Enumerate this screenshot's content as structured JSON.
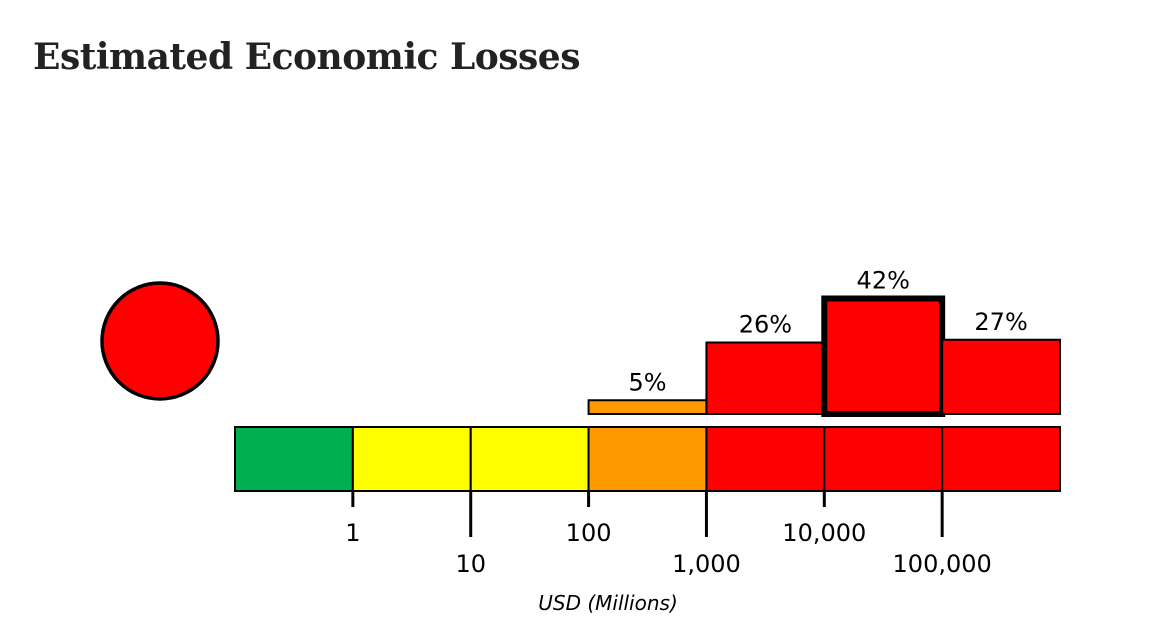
{
  "title": "Estimated Economic Losses",
  "alert_level_color": "#ff0000",
  "chart_data": {
    "type": "bar",
    "title": "Estimated Economic Losses",
    "xlabel": "USD (Millions)",
    "ylabel": "",
    "bins": [
      "<1",
      "1-10",
      "10-100",
      "100-1,000",
      "1,000-10,000",
      "10,000-100,000",
      ">100,000"
    ],
    "values": [
      0,
      0,
      0,
      5,
      26,
      42,
      27
    ],
    "value_labels": [
      "",
      "",
      "",
      "5%",
      "26%",
      "42%",
      "27%"
    ],
    "highlighted_bin": 5,
    "tick_labels": [
      "1",
      "10",
      "100",
      "1,000",
      "10,000",
      "100,000"
    ],
    "scale_colors": [
      "#00b050",
      "#ffff00",
      "#ffff00",
      "#ff9900",
      "#ff0000",
      "#ff0000",
      "#ff0000"
    ],
    "bar_colors": [
      "#00b050",
      "#ffff00",
      "#ffff00",
      "#ff9900",
      "#ff0000",
      "#ff0000",
      "#ff0000"
    ],
    "grid": false
  }
}
